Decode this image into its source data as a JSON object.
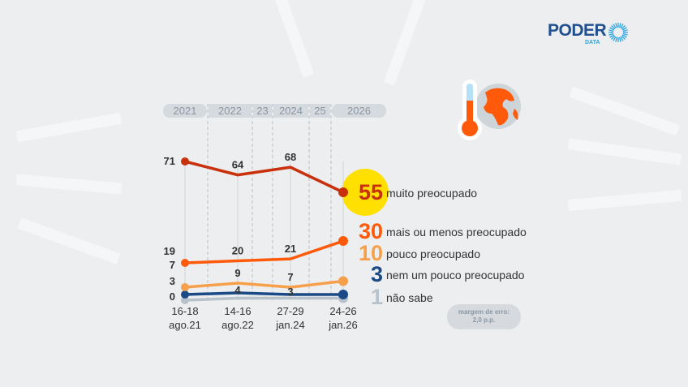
{
  "brand": {
    "name": "PODER",
    "sub": "DATA",
    "color": "#1f4f8f",
    "accent": "#2aa6e0"
  },
  "icons": [
    "thermometer-icon",
    "globe-icon"
  ],
  "footer": {
    "margin_line1": "margem de erro:",
    "margin_line2": "2,0 p.p."
  },
  "chart_data": {
    "type": "line",
    "years": [
      "2021",
      "2022",
      "23",
      "2024",
      "25",
      "2026"
    ],
    "categories": [
      {
        "days": "16-18",
        "month": "ago.21"
      },
      {
        "days": "14-16",
        "month": "ago.22"
      },
      {
        "days": "27-29",
        "month": "jan.24"
      },
      {
        "days": "24-26",
        "month": "jan.26"
      }
    ],
    "series": [
      {
        "name": "muito preocupado",
        "values": [
          71,
          64,
          68,
          55
        ],
        "color": "#c8310c",
        "highlight": "#ffe000"
      },
      {
        "name": "mais ou menos preocupado",
        "values": [
          19,
          20,
          21,
          30
        ],
        "color": "#ff5a0a"
      },
      {
        "name": "pouco preocupado",
        "values": [
          7,
          9,
          7,
          10
        ],
        "color": "#f7a04b"
      },
      {
        "name": "nem um pouco preocupado",
        "values": [
          3,
          4,
          3,
          3
        ],
        "color": "#1b4a86"
      },
      {
        "name": "não sabe",
        "values": [
          0,
          1,
          1,
          1
        ],
        "color": "#b8c2ca",
        "mid_labels": false
      }
    ],
    "unit": "%",
    "grid": false
  }
}
